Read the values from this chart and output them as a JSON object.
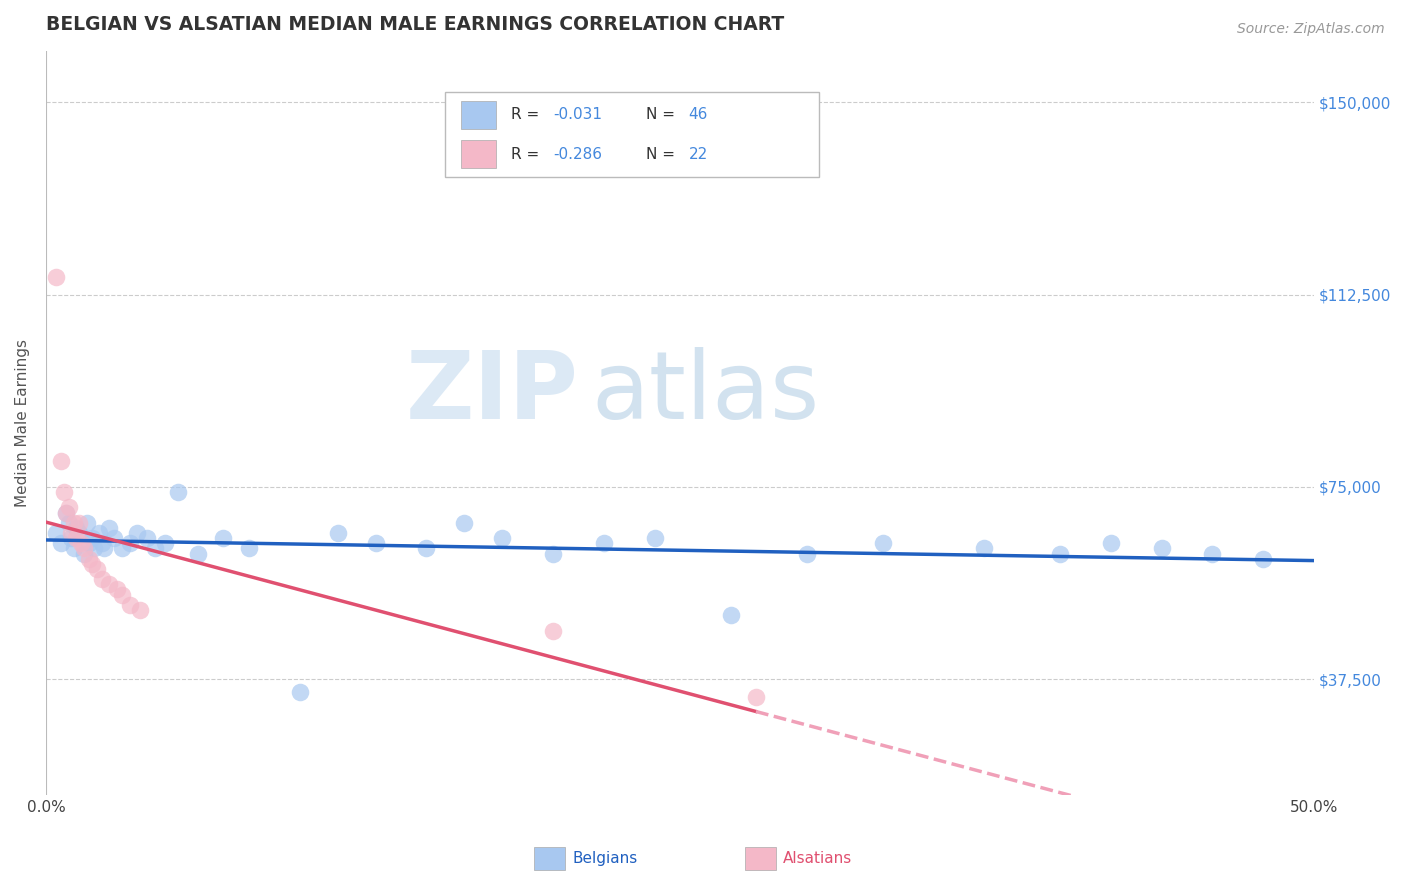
{
  "title": "BELGIAN VS ALSATIAN MEDIAN MALE EARNINGS CORRELATION CHART",
  "source_text": "Source: ZipAtlas.com",
  "ylabel": "Median Male Earnings",
  "xlim": [
    0.0,
    0.5
  ],
  "ylim": [
    15000,
    160000
  ],
  "yticks": [
    37500,
    75000,
    112500,
    150000
  ],
  "ytick_labels": [
    "$37,500",
    "$75,000",
    "$112,500",
    "$150,000"
  ],
  "xtick_labels": [
    "0.0%",
    "50.0%"
  ],
  "belgian_color": "#A8C8F0",
  "alsatian_color": "#F4B8C8",
  "belgian_line_color": "#2060C0",
  "alsatian_line_color": "#E05070",
  "alsatian_line_dashed_color": "#F0A0B8",
  "grid_color": "#CCCCCC",
  "watermark_zip": "ZIP",
  "watermark_atlas": "atlas",
  "legend_R_belgian": "R = -0.031",
  "legend_N_belgian": "N = 46",
  "legend_R_alsatian": "R = -0.286",
  "legend_N_alsatian": "N = 22",
  "belgians_label": "Belgians",
  "alsatians_label": "Alsatians",
  "belgian_x": [
    0.004,
    0.006,
    0.008,
    0.009,
    0.01,
    0.011,
    0.012,
    0.013,
    0.015,
    0.016,
    0.017,
    0.018,
    0.019,
    0.021,
    0.022,
    0.023,
    0.025,
    0.027,
    0.03,
    0.033,
    0.036,
    0.04,
    0.043,
    0.047,
    0.052,
    0.06,
    0.07,
    0.08,
    0.1,
    0.115,
    0.13,
    0.15,
    0.165,
    0.18,
    0.2,
    0.22,
    0.24,
    0.27,
    0.3,
    0.33,
    0.37,
    0.4,
    0.42,
    0.44,
    0.46,
    0.48
  ],
  "belgian_y": [
    66000,
    64000,
    70000,
    68000,
    65000,
    63000,
    67000,
    66000,
    62000,
    68000,
    64000,
    65000,
    63000,
    66000,
    64000,
    63000,
    67000,
    65000,
    63000,
    64000,
    66000,
    65000,
    63000,
    64000,
    74000,
    62000,
    65000,
    63000,
    35000,
    66000,
    64000,
    63000,
    68000,
    65000,
    62000,
    64000,
    65000,
    50000,
    62000,
    64000,
    63000,
    62000,
    64000,
    63000,
    62000,
    61000
  ],
  "alsatian_x": [
    0.004,
    0.006,
    0.007,
    0.008,
    0.009,
    0.01,
    0.011,
    0.012,
    0.013,
    0.014,
    0.015,
    0.017,
    0.018,
    0.02,
    0.022,
    0.025,
    0.028,
    0.03,
    0.033,
    0.037,
    0.2,
    0.28
  ],
  "alsatian_y": [
    116000,
    80000,
    74000,
    70000,
    71000,
    66000,
    68000,
    65000,
    68000,
    64000,
    63000,
    61000,
    60000,
    59000,
    57000,
    56000,
    55000,
    54000,
    52000,
    51000,
    47000,
    34000
  ],
  "title_color": "#333333",
  "axis_label_color": "#555555",
  "yaxis_right_color": "#4488DD",
  "title_fontsize": 13.5,
  "source_fontsize": 10,
  "axis_fontsize": 11,
  "tick_fontsize": 11,
  "legend_value_color": "#4488DD",
  "legend_text_color": "#333333"
}
